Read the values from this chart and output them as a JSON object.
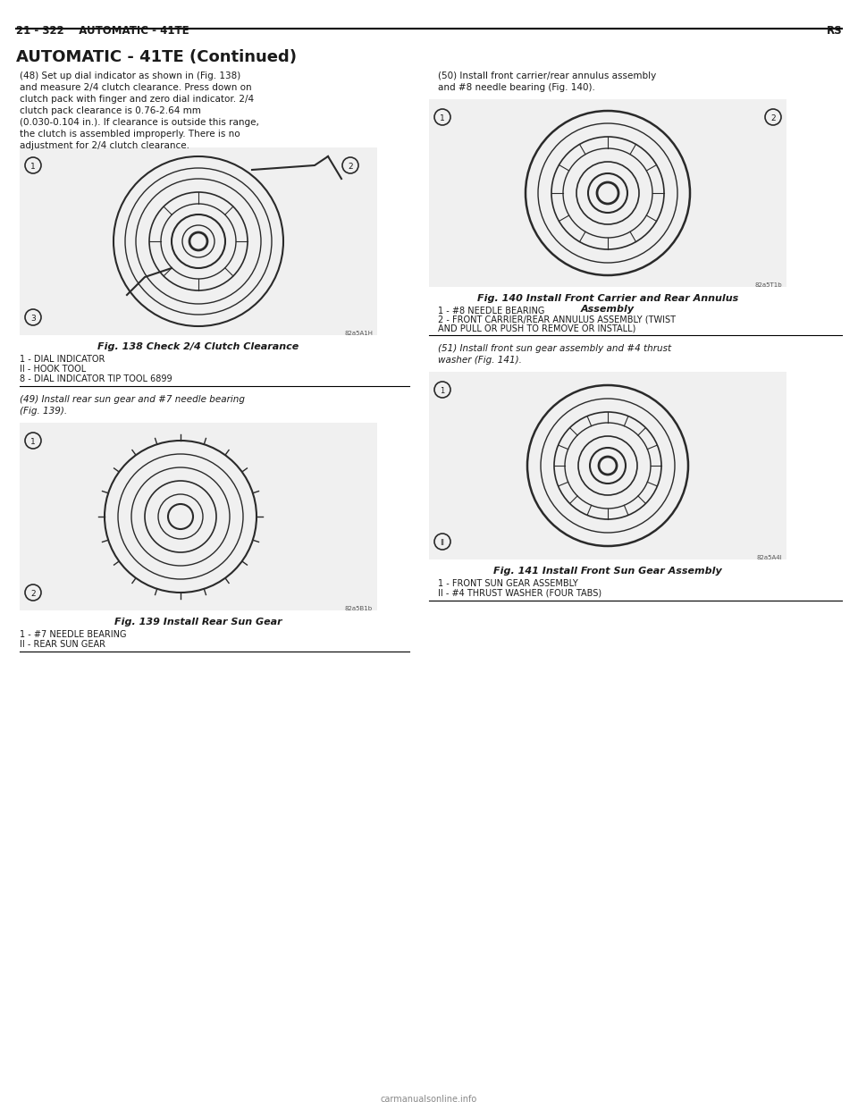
{
  "bg_color": "#ffffff",
  "page_width": 9.6,
  "page_height": 12.42,
  "header_left": "21 - 322    AUTOMATIC - 41TE",
  "header_right": "RS",
  "section_title": "AUTOMATIC - 41TE (Continued)",
  "para1": "(48) Set up dial indicator as shown in (Fig. 138)\nand measure 2/4 clutch clearance. Press down on\nclutch pack with finger and zero dial indicator. 2/4\nclutch pack clearance is 0.76-2.64 mm\n(0.030-0.104 in.). If clearance is outside this range,\nthe clutch is assembled improperly. There is no\nadjustment for 2/4 clutch clearance.",
  "fig138_caption": "Fig. 138 Check 2/4 Clutch Clearance",
  "fig138_labels": [
    "1 - DIAL INDICATOR",
    "II - HOOK TOOL",
    "8 - DIAL INDICATOR TIP TOOL 6899"
  ],
  "para2": "(49) Install rear sun gear and #7 needle bearing\n(Fig. 139).",
  "fig139_caption": "Fig. 139 Install Rear Sun Gear",
  "fig139_labels": [
    "1 - #7 NEEDLE BEARING",
    "II - REAR SUN GEAR"
  ],
  "para3_right": "(50) Install front carrier/rear annulus assembly\nand #8 needle bearing (Fig. 140).",
  "fig140_caption": "Fig. 140 Install Front Carrier and Rear Annulus\nAssembly",
  "fig140_labels": [
    "1 - #8 NEEDLE BEARING",
    "2 - FRONT CARRIER/REAR ANNULUS ASSEMBLY (TWIST\nAND PULL OR PUSH TO REMOVE OR INSTALL)"
  ],
  "para4_right": "(51) Install front sun gear assembly and #4 thrust\nwasher (Fig. 141).",
  "fig141_caption": "Fig. 141 Install Front Sun Gear Assembly",
  "fig141_labels": [
    "1 - FRONT SUN GEAR ASSEMBLY",
    "II - #4 THRUST WASHER (FOUR TABS)"
  ],
  "text_color": "#1a1a1a",
  "line_color": "#000000"
}
